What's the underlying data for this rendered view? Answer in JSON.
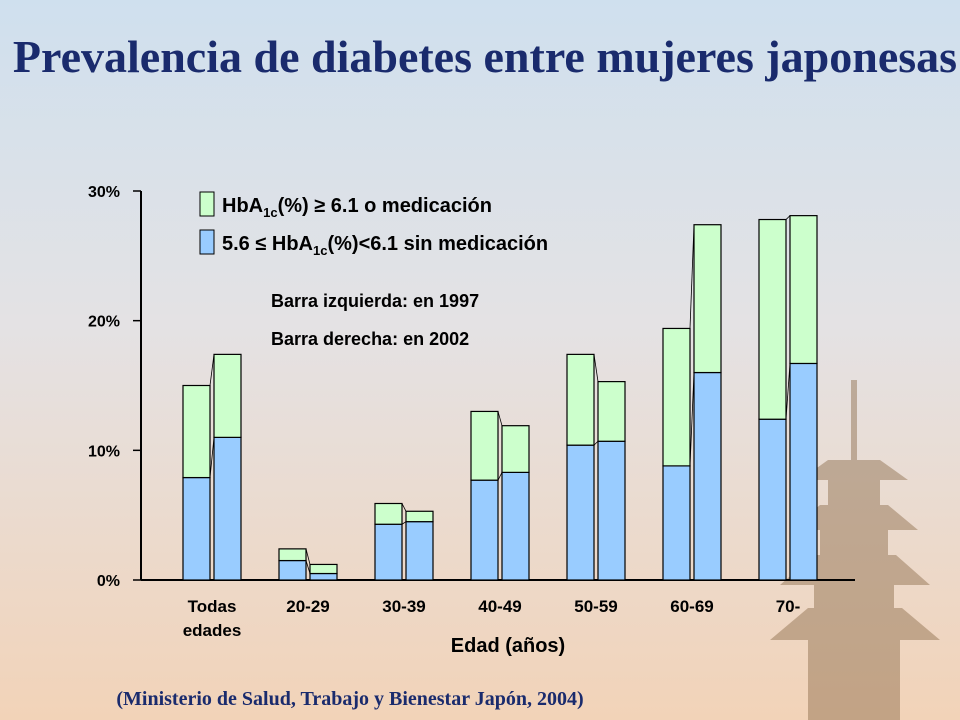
{
  "chart_data": {
    "type": "grouped-stacked-bar",
    "title": "Prevalencia de diabetes entre mujeres japonesas",
    "source": "(Ministerio de Salud, Trabajo y Bienestar Japón, 2004)",
    "x_label": "Edad (años)",
    "categories": [
      "Todas edades",
      "20-29",
      "30-39",
      "40-49",
      "50-59",
      "60-69",
      "70-"
    ],
    "annotations": [
      "Barra izquierda: en 1997",
      "Barra derecha: en 2002"
    ],
    "series": [
      {
        "name": "5.6 ≤ HbA1c(%)<6.1 sin medicación",
        "color": "#99ccff",
        "values": [
          [
            7.9,
            11.0
          ],
          [
            1.5,
            0.5
          ],
          [
            4.3,
            4.5
          ],
          [
            7.7,
            8.3
          ],
          [
            10.4,
            10.7
          ],
          [
            8.8,
            16.0
          ],
          [
            12.4,
            16.7
          ]
        ]
      },
      {
        "name": "HbA1c(%) ≥ 6.1 o medicación",
        "color": "#ccffcc",
        "values": [
          [
            7.1,
            6.4
          ],
          [
            0.9,
            0.7
          ],
          [
            1.6,
            0.8
          ],
          [
            5.3,
            3.6
          ],
          [
            7.0,
            4.6
          ],
          [
            10.6,
            11.4
          ],
          [
            15.4,
            11.4
          ]
        ]
      }
    ],
    "ylim": [
      0,
      30
    ],
    "yticks": [
      {
        "value": 0,
        "label": "0%"
      },
      {
        "value": 10,
        "label": "10%"
      },
      {
        "value": 20,
        "label": "20%"
      },
      {
        "value": 30,
        "label": "30%"
      }
    ]
  }
}
